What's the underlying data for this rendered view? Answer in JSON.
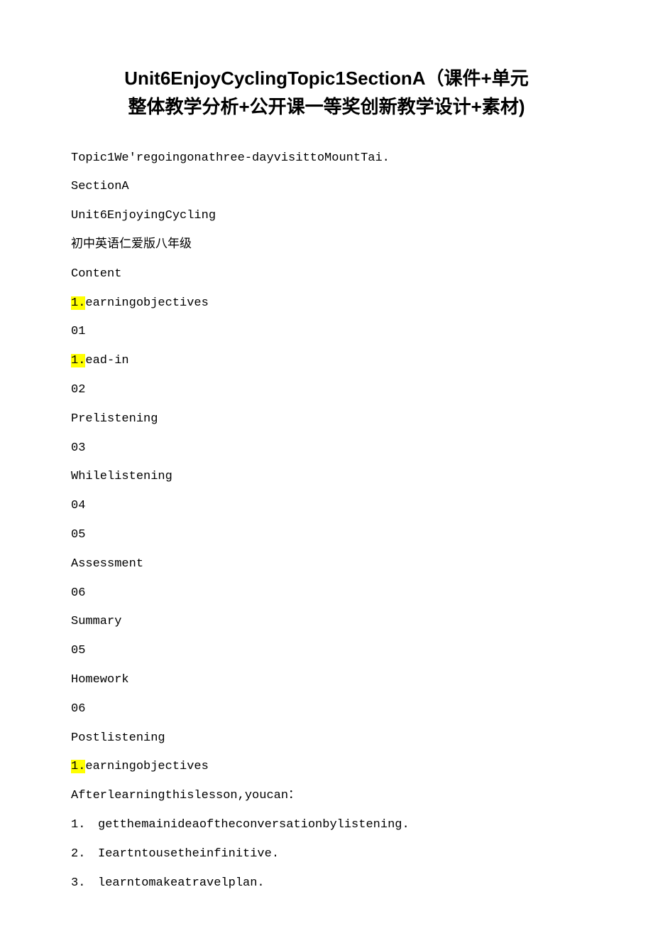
{
  "title_line1": "Unit6EnjoyCyclingTopic1SectionA（课件+单元",
  "title_line2": "整体教学分析+公开课一等奖创新教学设计+素材)",
  "lines": [
    {
      "text": "Topic1We'regoingonathree-dayvisittoMountTai."
    },
    {
      "text": "SectionA"
    },
    {
      "text": "Unit6EnjoyingCycling"
    },
    {
      "text": "初中英语仁爱版八年级"
    },
    {
      "text": "Content"
    },
    {
      "hl": "1.",
      "rest": "earningobjectives"
    },
    {
      "text": "01"
    },
    {
      "hl": "1.",
      "rest": "ead-in"
    },
    {
      "text": "02"
    },
    {
      "text": "Prelistening"
    },
    {
      "text": "03"
    },
    {
      "text": "Whilelistening"
    },
    {
      "text": "04"
    },
    {
      "text": "05"
    },
    {
      "text": "Assessment"
    },
    {
      "text": "06"
    },
    {
      "text": "Summary"
    },
    {
      "text": "05"
    },
    {
      "text": "Homework"
    },
    {
      "text": "06"
    },
    {
      "text": "Postlistening"
    },
    {
      "hl": "1.",
      "rest": "earningobjectives"
    },
    {
      "text": "Afterlearningthislesson,youcan："
    }
  ],
  "numbered": [
    {
      "n": "1.",
      "t": "getthemainideaoftheconversationbylistening."
    },
    {
      "n": "2.",
      "t": "Ieartntousetheinfinitive."
    },
    {
      "n": "3.",
      "t": "learntomakeatravelplan."
    }
  ],
  "colors": {
    "background": "#ffffff",
    "text": "#000000",
    "highlight": "#ffff00"
  },
  "fonts": {
    "title_family": "Microsoft YaHei",
    "title_size_pt": 20,
    "title_weight": "bold",
    "body_family": "Courier New / SimSun",
    "body_size_pt": 13
  }
}
